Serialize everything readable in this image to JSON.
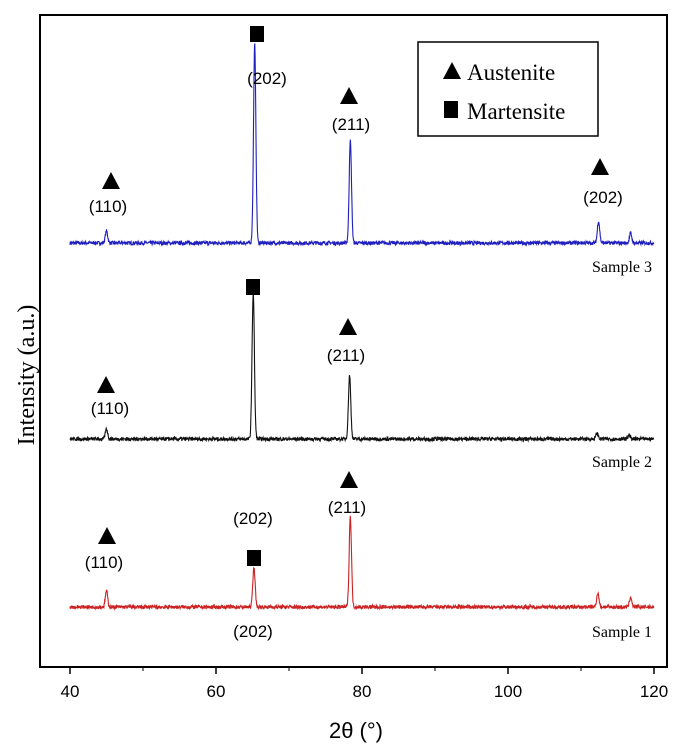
{
  "chart_data": {
    "type": "line",
    "xlabel": "2θ (°)",
    "ylabel": "Intensity (a.u.)",
    "xlim": [
      40,
      120
    ],
    "x_ticks": [
      40,
      60,
      80,
      100,
      120
    ],
    "y_ticks_shown": false,
    "grid": false,
    "legend": {
      "position": "top-right",
      "entries": [
        {
          "marker": "triangle",
          "label": "Austenite"
        },
        {
          "marker": "square",
          "label": "Martensite"
        }
      ]
    },
    "series": [
      {
        "name": "Sample 3",
        "color": "#1f1fbf",
        "peaks": [
          {
            "x": 45.0,
            "height": 0.06
          },
          {
            "x": 65.3,
            "height": 1.0
          },
          {
            "x": 78.4,
            "height": 0.51
          },
          {
            "x": 112.4,
            "height": 0.11
          },
          {
            "x": 116.8,
            "height": 0.05
          }
        ],
        "annotations": [
          {
            "x": 45.0,
            "phase": "austenite",
            "label": "(110)"
          },
          {
            "x": 65.3,
            "phase": "martensite",
            "label": "(202)"
          },
          {
            "x": 78.4,
            "phase": "austenite",
            "label": "(211)"
          },
          {
            "x": 112.4,
            "phase": "austenite",
            "label": "(202)"
          }
        ]
      },
      {
        "name": "Sample 2",
        "color": "#111111",
        "peaks": [
          {
            "x": 45.0,
            "height": 0.05
          },
          {
            "x": 65.1,
            "height": 0.73
          },
          {
            "x": 78.3,
            "height": 0.32
          },
          {
            "x": 112.2,
            "height": 0.03
          },
          {
            "x": 116.6,
            "height": 0.02
          }
        ],
        "annotations": [
          {
            "x": 45.0,
            "phase": "austenite",
            "label": "(110)"
          },
          {
            "x": 65.1,
            "phase": "martensite",
            "label": ""
          },
          {
            "x": 78.3,
            "phase": "austenite",
            "label": "(211)"
          }
        ]
      },
      {
        "name": "Sample 1",
        "color": "#cc2222",
        "peaks": [
          {
            "x": 45.0,
            "height": 0.08
          },
          {
            "x": 65.2,
            "height": 0.2
          },
          {
            "x": 78.4,
            "height": 0.45
          },
          {
            "x": 112.3,
            "height": 0.07
          },
          {
            "x": 116.8,
            "height": 0.05
          }
        ],
        "annotations": [
          {
            "x": 45.0,
            "phase": "austenite",
            "label": "(110)"
          },
          {
            "x": 65.2,
            "phase": "martensite",
            "label": "(202)",
            "second_label": "(202)"
          },
          {
            "x": 78.4,
            "phase": "austenite",
            "label": "(211)"
          }
        ]
      }
    ]
  }
}
